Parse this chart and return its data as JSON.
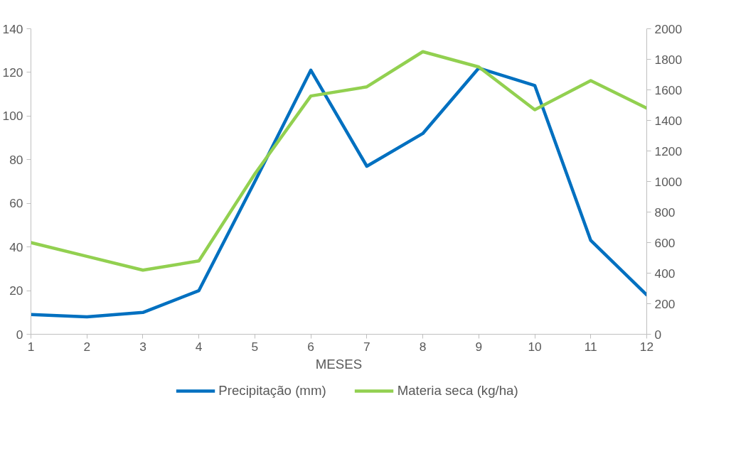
{
  "chart_data": {
    "type": "line",
    "xlabel": "MESES",
    "x": [
      1,
      2,
      3,
      4,
      5,
      6,
      7,
      8,
      9,
      10,
      11,
      12
    ],
    "xlim": [
      1,
      12
    ],
    "xticks": [
      1,
      2,
      3,
      4,
      5,
      6,
      7,
      8,
      9,
      10,
      11,
      12
    ],
    "ylim": [
      0,
      140
    ],
    "yticks": [
      0,
      20,
      40,
      60,
      80,
      100,
      120,
      140
    ],
    "y2lim": [
      0,
      2000
    ],
    "y2ticks": [
      0,
      200,
      400,
      600,
      800,
      1000,
      1200,
      1400,
      1600,
      1800,
      2000
    ],
    "series": [
      {
        "name": "Precipitação (mm)",
        "color": "#0070c0",
        "values": [
          9,
          8,
          10,
          20,
          70,
          121,
          77,
          92,
          122,
          114,
          43,
          18
        ]
      },
      {
        "name": "Materia seca (kg/ha)",
        "color": "#92d050",
        "axis": "y2",
        "values": [
          600,
          510,
          420,
          480,
          1050,
          1560,
          1620,
          1850,
          1750,
          1470,
          1660,
          1480
        ]
      }
    ],
    "grid": false,
    "legend": "bottom",
    "marker": "none",
    "line_style": "solid"
  }
}
